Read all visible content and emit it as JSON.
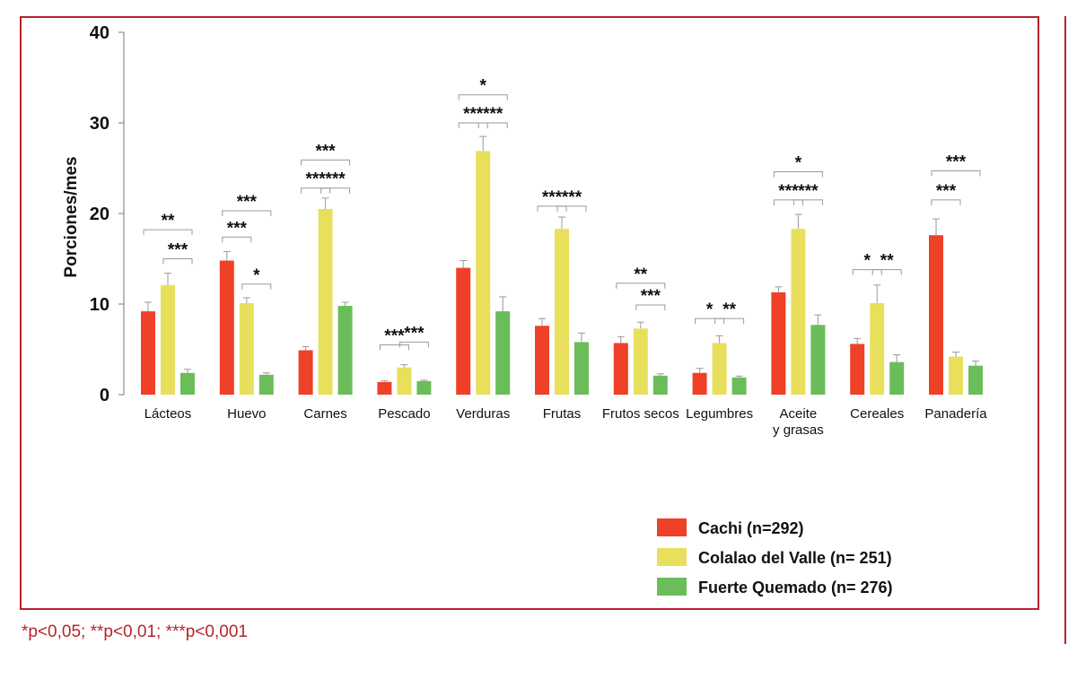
{
  "chart_data": {
    "type": "bar",
    "ylabel": "Porciones/mes",
    "ylim": [
      0,
      40
    ],
    "yticks": [
      0,
      10,
      20,
      30,
      40
    ],
    "categories": [
      {
        "lines": [
          "Lácteos"
        ]
      },
      {
        "lines": [
          "Huevo"
        ]
      },
      {
        "lines": [
          "Carnes"
        ]
      },
      {
        "lines": [
          "Pescado"
        ]
      },
      {
        "lines": [
          "Verduras"
        ]
      },
      {
        "lines": [
          "Frutas"
        ]
      },
      {
        "lines": [
          "Frutos secos"
        ]
      },
      {
        "lines": [
          "Legumbres"
        ]
      },
      {
        "lines": [
          "Aceite",
          "y grasas"
        ]
      },
      {
        "lines": [
          "Cereales"
        ]
      },
      {
        "lines": [
          "Panadería"
        ]
      }
    ],
    "series": [
      {
        "name": "Cachi (n=292)",
        "color": "#ee4128",
        "values": [
          9.2,
          14.8,
          4.9,
          1.4,
          14.0,
          7.6,
          5.7,
          2.4,
          11.3,
          5.6,
          17.6
        ],
        "errors": [
          1.0,
          1.0,
          0.4,
          0.15,
          0.8,
          0.8,
          0.7,
          0.5,
          0.6,
          0.6,
          1.8
        ]
      },
      {
        "name": "Colalao del Valle (n= 251)",
        "color": "#e8e05c",
        "values": [
          12.1,
          10.1,
          20.5,
          3.0,
          26.9,
          18.3,
          7.3,
          5.7,
          18.3,
          10.1,
          4.2
        ],
        "errors": [
          1.3,
          0.6,
          1.2,
          0.3,
          1.6,
          1.3,
          0.7,
          0.8,
          1.6,
          2.0,
          0.5
        ]
      },
      {
        "name": "Fuerte Quemado (n= 276)",
        "color": "#6bbd5a",
        "values": [
          2.4,
          2.2,
          9.8,
          1.5,
          9.2,
          5.8,
          2.1,
          1.9,
          7.7,
          3.6,
          3.2
        ],
        "errors": [
          0.4,
          0.2,
          0.4,
          0.1,
          1.6,
          1.0,
          0.2,
          0.15,
          1.1,
          0.8,
          0.5
        ]
      }
    ],
    "significance": [
      {
        "category": 0,
        "from": 0,
        "to": 2,
        "label": "**",
        "y": 18.2
      },
      {
        "category": 0,
        "from": 1,
        "to": 2,
        "label": "***",
        "y": 15.0
      },
      {
        "category": 1,
        "from": 0,
        "to": 1,
        "label": "***",
        "y": 17.4
      },
      {
        "category": 1,
        "from": 0,
        "to": 2,
        "label": "***",
        "y": 20.3
      },
      {
        "category": 1,
        "from": 1,
        "to": 2,
        "label": "*",
        "y": 12.2
      },
      {
        "category": 2,
        "from": 0,
        "to": 1,
        "label": "***",
        "y": 22.8
      },
      {
        "category": 2,
        "from": 1,
        "to": 2,
        "label": "***",
        "y": 22.8
      },
      {
        "category": 2,
        "from": 0,
        "to": 2,
        "label": "***",
        "y": 25.9
      },
      {
        "category": 3,
        "from": 0,
        "to": 1,
        "label": "***",
        "y": 5.5
      },
      {
        "category": 3,
        "from": 1,
        "to": 2,
        "label": "***",
        "y": 5.8
      },
      {
        "category": 4,
        "from": 0,
        "to": 1,
        "label": "***",
        "y": 30.0
      },
      {
        "category": 4,
        "from": 1,
        "to": 2,
        "label": "***",
        "y": 30.0
      },
      {
        "category": 4,
        "from": 0,
        "to": 2,
        "label": "*",
        "y": 33.1
      },
      {
        "category": 5,
        "from": 0,
        "to": 1,
        "label": "***",
        "y": 20.8
      },
      {
        "category": 5,
        "from": 1,
        "to": 2,
        "label": "***",
        "y": 20.8
      },
      {
        "category": 6,
        "from": 0,
        "to": 2,
        "label": "**",
        "y": 12.3
      },
      {
        "category": 6,
        "from": 1,
        "to": 2,
        "label": "***",
        "y": 9.9
      },
      {
        "category": 7,
        "from": 0,
        "to": 1,
        "label": "*",
        "y": 8.4
      },
      {
        "category": 7,
        "from": 1,
        "to": 2,
        "label": "**",
        "y": 8.4
      },
      {
        "category": 8,
        "from": 0,
        "to": 1,
        "label": "***",
        "y": 21.5
      },
      {
        "category": 8,
        "from": 1,
        "to": 2,
        "label": "***",
        "y": 21.5
      },
      {
        "category": 8,
        "from": 0,
        "to": 2,
        "label": "*",
        "y": 24.6
      },
      {
        "category": 9,
        "from": 0,
        "to": 1,
        "label": "*",
        "y": 13.8
      },
      {
        "category": 9,
        "from": 1,
        "to": 2,
        "label": "**",
        "y": 13.8
      },
      {
        "category": 10,
        "from": 0,
        "to": 1,
        "label": "***",
        "y": 21.5
      },
      {
        "category": 10,
        "from": 0,
        "to": 2,
        "label": "***",
        "y": 24.7
      }
    ],
    "legend_position": "bottom-right"
  },
  "footnote": "*p<0,05; **p<0,01; ***p<0,001"
}
